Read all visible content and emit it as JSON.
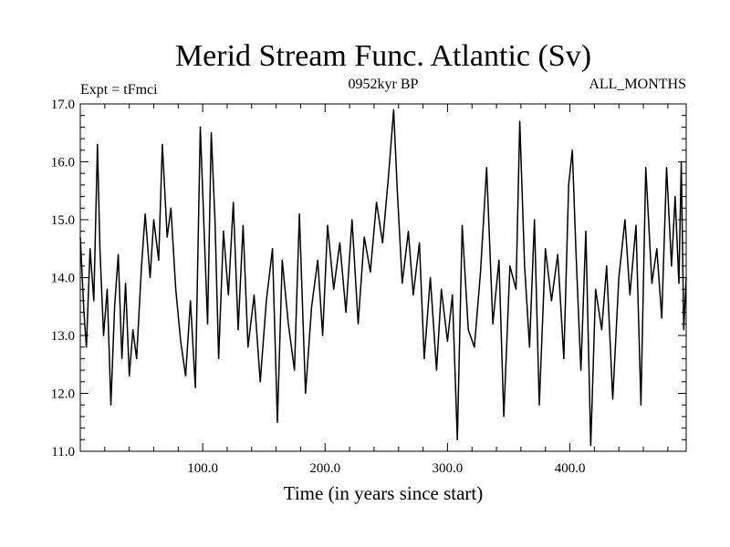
{
  "chart_data": {
    "type": "line",
    "title": "Merid Stream Func. Atlantic (Sv)",
    "subtitle_left": "Expt = tFmci",
    "subtitle_center": "0952kyr BP",
    "subtitle_right": "ALL_MONTHS",
    "xlabel": "Time (in years since start)",
    "ylabel": "",
    "xlim": [
      0,
      495
    ],
    "ylim": [
      11.0,
      17.0
    ],
    "xticks": [
      100,
      200,
      300,
      400
    ],
    "xtick_labels": [
      "100.0",
      "200.0",
      "300.0",
      "400.0"
    ],
    "yticks": [
      11,
      12,
      13,
      14,
      15,
      16,
      17
    ],
    "ytick_labels": [
      "11.0",
      "12.0",
      "13.0",
      "14.0",
      "15.0",
      "16.0",
      "17.0"
    ],
    "grid": false,
    "series": [
      {
        "name": "Merid Stream Func. Atlantic",
        "points": [
          [
            0,
            14.7
          ],
          [
            3,
            13.4
          ],
          [
            5,
            12.8
          ],
          [
            8,
            14.5
          ],
          [
            11,
            13.6
          ],
          [
            14,
            16.3
          ],
          [
            16,
            14.5
          ],
          [
            19,
            13.0
          ],
          [
            22,
            13.8
          ],
          [
            25,
            11.8
          ],
          [
            28,
            13.5
          ],
          [
            31,
            14.4
          ],
          [
            34,
            12.6
          ],
          [
            37,
            13.9
          ],
          [
            40,
            12.3
          ],
          [
            43,
            13.1
          ],
          [
            46,
            12.6
          ],
          [
            50,
            14.2
          ],
          [
            53,
            15.1
          ],
          [
            57,
            14.0
          ],
          [
            60,
            15.0
          ],
          [
            64,
            14.3
          ],
          [
            67,
            16.3
          ],
          [
            71,
            14.7
          ],
          [
            74,
            15.2
          ],
          [
            78,
            13.8
          ],
          [
            82,
            12.9
          ],
          [
            86,
            12.3
          ],
          [
            90,
            13.6
          ],
          [
            94,
            12.1
          ],
          [
            98,
            16.6
          ],
          [
            101,
            14.9
          ],
          [
            104,
            13.2
          ],
          [
            107,
            16.5
          ],
          [
            110,
            15.0
          ],
          [
            113,
            12.6
          ],
          [
            117,
            14.8
          ],
          [
            121,
            13.7
          ],
          [
            125,
            15.3
          ],
          [
            129,
            13.1
          ],
          [
            133,
            14.9
          ],
          [
            137,
            12.8
          ],
          [
            142,
            13.7
          ],
          [
            147,
            12.2
          ],
          [
            152,
            13.6
          ],
          [
            157,
            14.5
          ],
          [
            161,
            11.5
          ],
          [
            165,
            14.3
          ],
          [
            170,
            13.2
          ],
          [
            175,
            12.4
          ],
          [
            179,
            15.1
          ],
          [
            184,
            12.0
          ],
          [
            189,
            13.5
          ],
          [
            194,
            14.3
          ],
          [
            198,
            13.0
          ],
          [
            202,
            14.9
          ],
          [
            207,
            13.8
          ],
          [
            212,
            14.6
          ],
          [
            217,
            13.4
          ],
          [
            222,
            15.0
          ],
          [
            227,
            13.2
          ],
          [
            232,
            14.7
          ],
          [
            237,
            14.1
          ],
          [
            242,
            15.3
          ],
          [
            247,
            14.6
          ],
          [
            252,
            15.8
          ],
          [
            256,
            16.9
          ],
          [
            259,
            15.5
          ],
          [
            263,
            13.9
          ],
          [
            268,
            14.8
          ],
          [
            272,
            13.7
          ],
          [
            277,
            14.6
          ],
          [
            281,
            12.6
          ],
          [
            286,
            14.0
          ],
          [
            291,
            12.4
          ],
          [
            295,
            13.8
          ],
          [
            300,
            12.9
          ],
          [
            304,
            13.7
          ],
          [
            308,
            11.2
          ],
          [
            312,
            14.9
          ],
          [
            317,
            13.1
          ],
          [
            322,
            12.8
          ],
          [
            327,
            14.1
          ],
          [
            332,
            15.9
          ],
          [
            337,
            13.2
          ],
          [
            342,
            14.3
          ],
          [
            346,
            11.6
          ],
          [
            351,
            14.2
          ],
          [
            356,
            13.8
          ],
          [
            359,
            16.7
          ],
          [
            363,
            14.2
          ],
          [
            367,
            12.8
          ],
          [
            371,
            15.0
          ],
          [
            375,
            11.8
          ],
          [
            380,
            14.5
          ],
          [
            385,
            13.6
          ],
          [
            390,
            14.4
          ],
          [
            395,
            12.6
          ],
          [
            399,
            15.6
          ],
          [
            402,
            16.2
          ],
          [
            405,
            14.4
          ],
          [
            409,
            12.4
          ],
          [
            413,
            14.8
          ],
          [
            417,
            11.1
          ],
          [
            421,
            13.8
          ],
          [
            426,
            13.1
          ],
          [
            430,
            14.2
          ],
          [
            435,
            11.9
          ],
          [
            440,
            14.0
          ],
          [
            445,
            15.0
          ],
          [
            449,
            13.7
          ],
          [
            454,
            14.9
          ],
          [
            458,
            11.8
          ],
          [
            462,
            15.9
          ],
          [
            467,
            13.9
          ],
          [
            471,
            14.5
          ],
          [
            475,
            13.3
          ],
          [
            479,
            15.9
          ],
          [
            483,
            14.2
          ],
          [
            486,
            15.4
          ],
          [
            489,
            13.9
          ],
          [
            491,
            16.0
          ],
          [
            493,
            13.1
          ],
          [
            495,
            14.0
          ]
        ]
      }
    ]
  }
}
